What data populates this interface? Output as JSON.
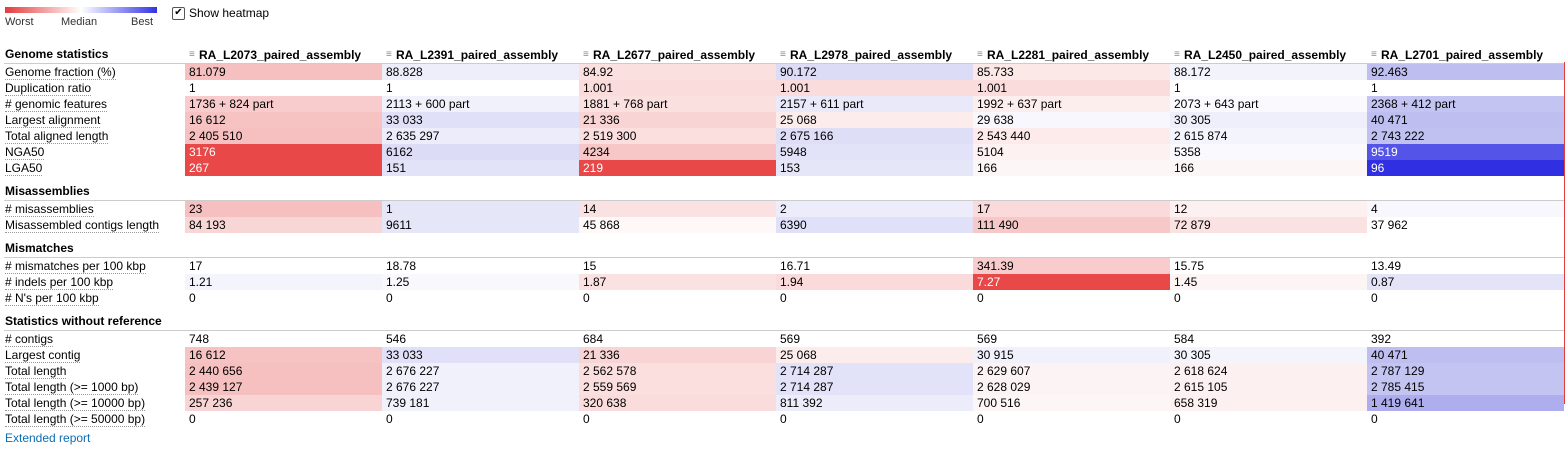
{
  "legend": {
    "worst": "Worst",
    "median": "Median",
    "best": "Best"
  },
  "heatmap_toggle": {
    "label": "Show heatmap",
    "checked": true
  },
  "assemblies": [
    "RA_L2073_paired_assembly",
    "RA_L2391_paired_assembly",
    "RA_L2677_paired_assembly",
    "RA_L2978_paired_assembly",
    "RA_L2281_paired_assembly",
    "RA_L2450_paired_assembly",
    "RA_L2701_paired_assembly"
  ],
  "groups": [
    {
      "title": "Genome statistics",
      "rows": [
        {
          "metric": "Genome fraction (%)",
          "values": [
            "81.079",
            "88.828",
            "84.92",
            "90.172",
            "85.733",
            "88.172",
            "92.463"
          ],
          "colors": [
            "#f6c0c0",
            "#eeeefb",
            "#fbe0e0",
            "#dcdcf7",
            "#fde8e8",
            "#f3f3fc",
            "#bebef1"
          ]
        },
        {
          "metric": "Duplication ratio",
          "values": [
            "1",
            "1",
            "1.001",
            "1.001",
            "1.001",
            "1",
            "1"
          ],
          "colors": [
            "#ffffff",
            "#ffffff",
            "#fbdcdc",
            "#fbdcdc",
            "#fbdcdc",
            "#ffffff",
            "#ffffff"
          ]
        },
        {
          "metric": "# genomic features",
          "values": [
            "1736 + 824 part",
            "2113 + 600 part",
            "1881 + 768 part",
            "2157 + 611 part",
            "1992 + 637 part",
            "2073 + 643 part",
            "2368 + 412 part"
          ],
          "colors": [
            "#f8cccc",
            "#f1f1fb",
            "#fbe0e0",
            "#e9e9f9",
            "#fdeeee",
            "#fafafe",
            "#c4c4f2"
          ]
        },
        {
          "metric": "Largest alignment",
          "values": [
            "16 612",
            "33 033",
            "21 336",
            "25 068",
            "29 638",
            "30 305",
            "40 471"
          ],
          "colors": [
            "#f6c2c2",
            "#e0e0f8",
            "#f9d4d4",
            "#fcecec",
            "#f7f7fd",
            "#efeffb",
            "#bebef1"
          ]
        },
        {
          "metric": "Total aligned length",
          "values": [
            "2 405 510",
            "2 635 297",
            "2 519 300",
            "2 675 166",
            "2 543 440",
            "2 615 874",
            "2 743 222"
          ],
          "colors": [
            "#f6c0c0",
            "#ececfa",
            "#fbdede",
            "#dedef7",
            "#fdeaea",
            "#f4f4fc",
            "#c0c0f1"
          ]
        },
        {
          "metric": "NGA50",
          "values": [
            "3176",
            "6162",
            "4234",
            "5948",
            "5104",
            "5358",
            "9519"
          ],
          "colors": [
            "#e84848",
            "#dcdcf7",
            "#f7c6c6",
            "#e2e2f8",
            "#fdf1f1",
            "#fafafe",
            "#5454e8"
          ]
        },
        {
          "metric": "LGA50",
          "values": [
            "267",
            "151",
            "219",
            "153",
            "166",
            "166",
            "96"
          ],
          "colors": [
            "#e84848",
            "#e2e2f8",
            "#e84848",
            "#e6e6f9",
            "#fcf6f6",
            "#fcf6f6",
            "#3030e2"
          ]
        }
      ]
    },
    {
      "title": "Misassemblies",
      "rows": [
        {
          "metric": "# misassemblies",
          "values": [
            "23",
            "1",
            "14",
            "2",
            "17",
            "12",
            "4"
          ],
          "colors": [
            "#f6c0c0",
            "#e6e6f9",
            "#fbe2e2",
            "#ececfa",
            "#fadada",
            "#fdf0f0",
            "#f7f7fd"
          ]
        },
        {
          "metric": "Misassembled contigs length",
          "values": [
            "84 193",
            "9611",
            "45 868",
            "6390",
            "111 490",
            "72 879",
            "37 962"
          ],
          "colors": [
            "#f9d6d6",
            "#e6e6f9",
            "#fef8f8",
            "#e0e0f8",
            "#f7c8c8",
            "#fbe2e2",
            "#ffffff"
          ]
        }
      ]
    },
    {
      "title": "Mismatches",
      "rows": [
        {
          "metric": "# mismatches per 100 kbp",
          "values": [
            "17",
            "18.78",
            "15",
            "16.71",
            "341.39",
            "15.75",
            "13.49"
          ],
          "colors": [
            "#ffffff",
            "#ffffff",
            "#ffffff",
            "#ffffff",
            "#f8cccc",
            "#ffffff",
            "#ffffff"
          ]
        },
        {
          "metric": "# indels per 100 kbp",
          "values": [
            "1.21",
            "1.25",
            "1.87",
            "1.94",
            "7.27",
            "1.45",
            "0.87"
          ],
          "colors": [
            "#f4f4fc",
            "#f8f8fd",
            "#fbe2e2",
            "#fadada",
            "#e84848",
            "#fdf4f4",
            "#e4e4f8"
          ]
        },
        {
          "metric": "# N's per 100 kbp",
          "values": [
            "0",
            "0",
            "0",
            "0",
            "0",
            "0",
            "0"
          ],
          "colors": [
            "#ffffff",
            "#ffffff",
            "#ffffff",
            "#ffffff",
            "#ffffff",
            "#ffffff",
            "#ffffff"
          ]
        }
      ]
    },
    {
      "title": "Statistics without reference",
      "rows": [
        {
          "metric": "# contigs",
          "values": [
            "748",
            "546",
            "684",
            "569",
            "569",
            "584",
            "392"
          ],
          "colors": [
            "#ffffff",
            "#ffffff",
            "#ffffff",
            "#ffffff",
            "#ffffff",
            "#ffffff",
            "#ffffff"
          ]
        },
        {
          "metric": "Largest contig",
          "values": [
            "16 612",
            "33 033",
            "21 336",
            "25 068",
            "30 915",
            "30 305",
            "40 471"
          ],
          "colors": [
            "#f6c2c2",
            "#e0e0f8",
            "#f9d4d4",
            "#fcecec",
            "#f1f1fb",
            "#f4f4fc",
            "#bebef1"
          ]
        },
        {
          "metric": "Total length",
          "values": [
            "2 440 656",
            "2 676 227",
            "2 562 578",
            "2 714 287",
            "2 629 607",
            "2 618 624",
            "2 787 129"
          ],
          "colors": [
            "#f6c0c0",
            "#f1f1fb",
            "#fbdede",
            "#e2e2f8",
            "#fcf4f4",
            "#fdf0f0",
            "#c4c4f2"
          ]
        },
        {
          "metric": "Total length (>= 1000 bp)",
          "values": [
            "2 439 127",
            "2 676 227",
            "2 559 569",
            "2 714 287",
            "2 628 029",
            "2 615 105",
            "2 785 415"
          ],
          "colors": [
            "#f6c0c0",
            "#f1f1fb",
            "#fbdede",
            "#e2e2f8",
            "#fcf4f4",
            "#fdf0f0",
            "#c4c4f2"
          ]
        },
        {
          "metric": "Total length (>= 10000 bp)",
          "values": [
            "257 236",
            "739 181",
            "320 638",
            "811 392",
            "700 516",
            "658 319",
            "1 419 641"
          ],
          "colors": [
            "#f9d4d4",
            "#f1f1fb",
            "#fbdcdc",
            "#ececfa",
            "#fdf6f6",
            "#fdf0f0",
            "#aeaeef"
          ]
        },
        {
          "metric": "Total length (>= 50000 bp)",
          "values": [
            "0",
            "0",
            "0",
            "0",
            "0",
            "0",
            "0"
          ],
          "colors": [
            "#ffffff",
            "#ffffff",
            "#ffffff",
            "#ffffff",
            "#ffffff",
            "#ffffff",
            "#ffffff"
          ]
        }
      ]
    }
  ],
  "extended_report": "Extended report",
  "accent_color": "#e63a3a"
}
